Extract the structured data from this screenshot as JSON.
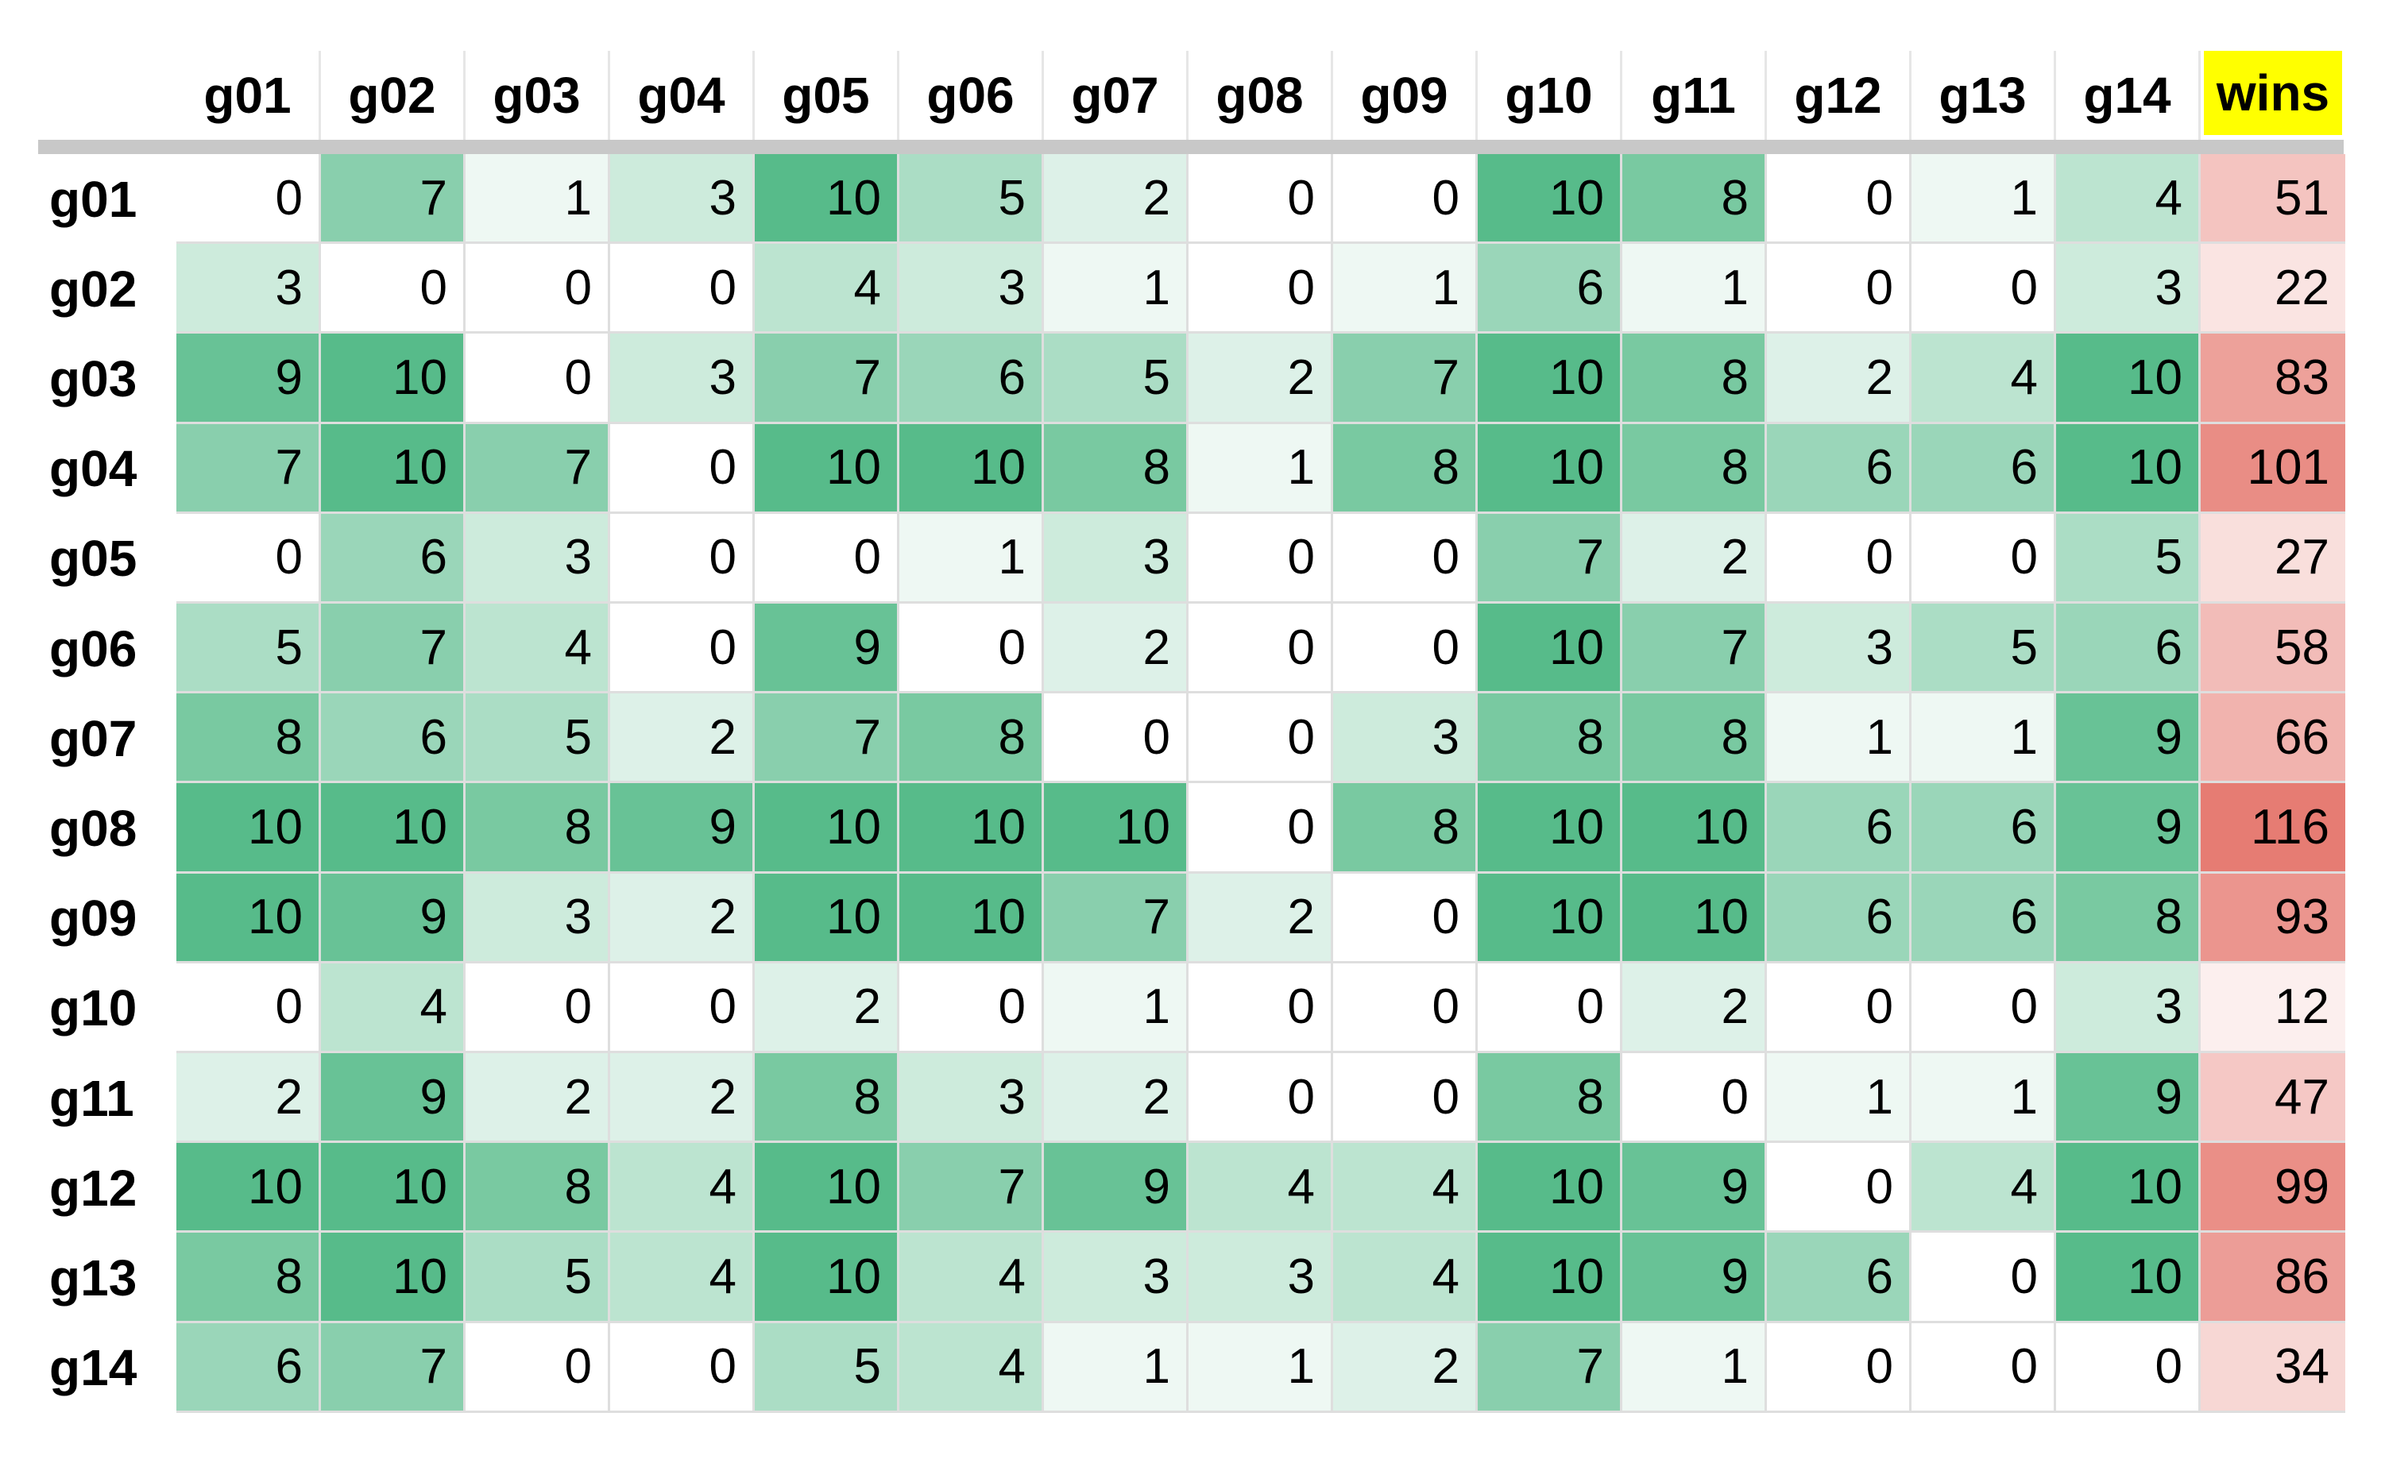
{
  "chart_data": {
    "type": "heatmap",
    "columns": [
      "g01",
      "g02",
      "g03",
      "g04",
      "g05",
      "g06",
      "g07",
      "g08",
      "g09",
      "g10",
      "g11",
      "g12",
      "g13",
      "g14"
    ],
    "total_label": "wins",
    "rows": [
      {
        "label": "g01",
        "values": [
          0,
          7,
          1,
          3,
          10,
          5,
          2,
          0,
          0,
          10,
          8,
          0,
          1,
          4
        ],
        "total": 51
      },
      {
        "label": "g02",
        "values": [
          3,
          0,
          0,
          0,
          4,
          3,
          1,
          0,
          1,
          6,
          1,
          0,
          0,
          3
        ],
        "total": 22
      },
      {
        "label": "g03",
        "values": [
          9,
          10,
          0,
          3,
          7,
          6,
          5,
          2,
          7,
          10,
          8,
          2,
          4,
          10
        ],
        "total": 83
      },
      {
        "label": "g04",
        "values": [
          7,
          10,
          7,
          0,
          10,
          10,
          8,
          1,
          8,
          10,
          8,
          6,
          6,
          10
        ],
        "total": 101
      },
      {
        "label": "g05",
        "values": [
          0,
          6,
          3,
          0,
          0,
          1,
          3,
          0,
          0,
          7,
          2,
          0,
          0,
          5
        ],
        "total": 27
      },
      {
        "label": "g06",
        "values": [
          5,
          7,
          4,
          0,
          9,
          0,
          2,
          0,
          0,
          10,
          7,
          3,
          5,
          6
        ],
        "total": 58
      },
      {
        "label": "g07",
        "values": [
          8,
          6,
          5,
          2,
          7,
          8,
          0,
          0,
          3,
          8,
          8,
          1,
          1,
          9
        ],
        "total": 66
      },
      {
        "label": "g08",
        "values": [
          10,
          10,
          8,
          9,
          10,
          10,
          10,
          0,
          8,
          10,
          10,
          6,
          6,
          9
        ],
        "total": 116
      },
      {
        "label": "g09",
        "values": [
          10,
          9,
          3,
          2,
          10,
          10,
          7,
          2,
          0,
          10,
          10,
          6,
          6,
          8
        ],
        "total": 93
      },
      {
        "label": "g10",
        "values": [
          0,
          4,
          0,
          0,
          2,
          0,
          1,
          0,
          0,
          0,
          2,
          0,
          0,
          3
        ],
        "total": 12
      },
      {
        "label": "g11",
        "values": [
          2,
          9,
          2,
          2,
          8,
          3,
          2,
          0,
          0,
          8,
          0,
          1,
          1,
          9
        ],
        "total": 47
      },
      {
        "label": "g12",
        "values": [
          10,
          10,
          8,
          4,
          10,
          7,
          9,
          4,
          4,
          10,
          9,
          0,
          4,
          10
        ],
        "total": 99
      },
      {
        "label": "g13",
        "values": [
          8,
          10,
          5,
          4,
          10,
          4,
          3,
          3,
          4,
          10,
          9,
          6,
          0,
          10
        ],
        "total": 86
      },
      {
        "label": "g14",
        "values": [
          6,
          7,
          0,
          0,
          5,
          4,
          1,
          1,
          2,
          7,
          1,
          0,
          0,
          0
        ],
        "total": 34
      }
    ],
    "value_range": [
      0,
      10
    ],
    "total_range": [
      12,
      116
    ],
    "colors": {
      "value_low": "#ffffff",
      "value_high": "#57bb8a",
      "total_low": "#ffffff",
      "total_high": "#e67c73",
      "total_header_bg": "#ffff00",
      "grid_line": "#dedede",
      "header_rule": "#c8c8c8"
    }
  }
}
